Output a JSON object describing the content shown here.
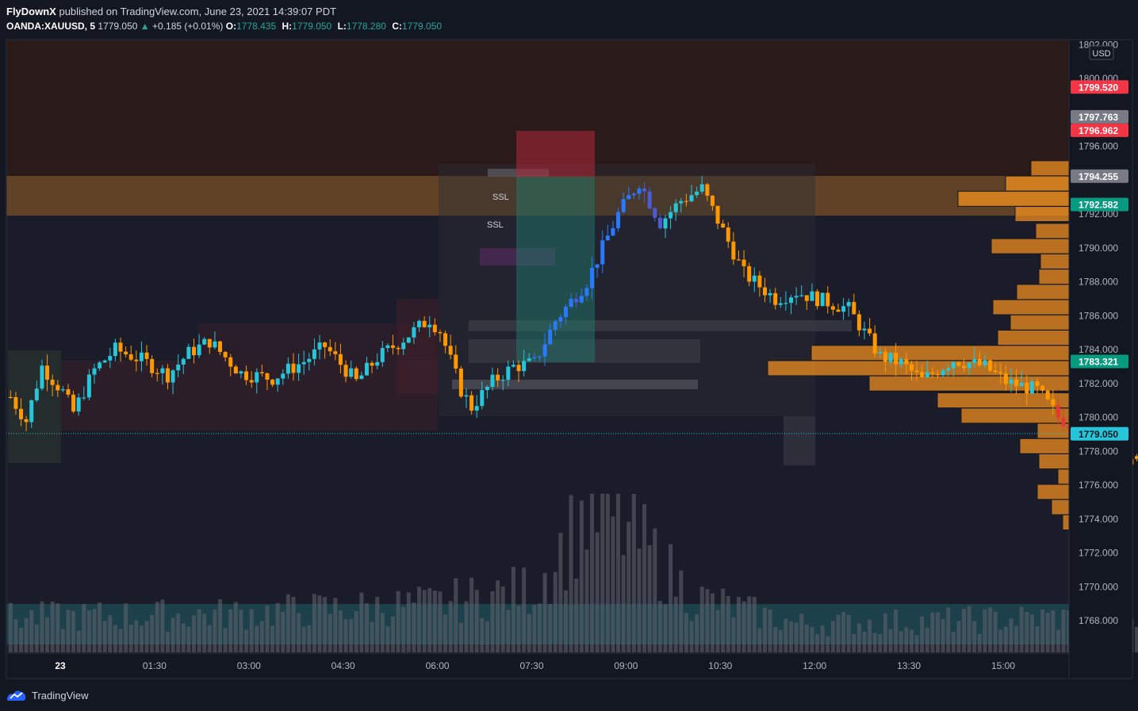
{
  "header": {
    "author": "FlyDownX",
    "published": "published on TradingView.com, June 23, 2021 14:39:07 PDT",
    "symbol": "OANDA:XAUUSD, 5",
    "last": "1779.050",
    "change": "+0.185 (+0.01%)",
    "o_label": "O:",
    "o_value": "1778.435",
    "h_label": "H:",
    "h_value": "1779.050",
    "l_label": "L:",
    "l_value": "1778.280",
    "c_label": "C:",
    "c_value": "1779.050"
  },
  "footer": {
    "brand": "TradingView"
  },
  "colors": {
    "bg": "#131722",
    "up": "#26c6da",
    "down": "#ef6c00",
    "accent": "#f7931e",
    "sell": "#f23645",
    "buy": "#089981"
  },
  "chart_data": {
    "type": "candlestick",
    "title": "",
    "currency": "USD",
    "timeframe": "5",
    "x_tick_labels": [
      "23",
      "01:30",
      "03:00",
      "04:30",
      "06:00",
      "07:30",
      "09:00",
      "10:30",
      "12:00",
      "13:30",
      "15:00"
    ],
    "y_tick_labels": [
      "1802.000",
      "1800.000",
      "1796.000",
      "1792.000",
      "1790.000",
      "1788.000",
      "1786.000",
      "1784.000",
      "1782.000",
      "1780.000",
      "1778.000",
      "1776.000",
      "1774.000",
      "1772.000",
      "1770.000",
      "1768.000"
    ],
    "ylim": [
      1766.5,
      1802.5
    ],
    "price_labels": [
      {
        "value": "1799.520",
        "kind": "sell"
      },
      {
        "value": "1797.763",
        "kind": "neutral"
      },
      {
        "value": "1796.962",
        "kind": "sell"
      },
      {
        "value": "1794.255",
        "kind": "neutral"
      },
      {
        "value": "1792.582",
        "kind": "buy"
      },
      {
        "value": "1783.321",
        "kind": "buy"
      },
      {
        "value": "1779.050",
        "kind": "last"
      }
    ],
    "annotations": [
      "SSL",
      "SSL"
    ],
    "zones": [
      {
        "label": "resistance",
        "from": 1791.9,
        "to": 1794.2
      },
      {
        "label": "premium",
        "from": 1794.2,
        "to": 1802.5
      },
      {
        "label": "volume-area",
        "from": 1766.6,
        "to": 1769.0
      }
    ],
    "volume_profile": [
      {
        "price": 1794.7,
        "volume": 48
      },
      {
        "price": 1793.8,
        "volume": 80
      },
      {
        "price": 1792.9,
        "volume": 140
      },
      {
        "price": 1792.0,
        "volume": 68
      },
      {
        "price": 1791.0,
        "volume": 42
      },
      {
        "price": 1790.1,
        "volume": 98
      },
      {
        "price": 1789.2,
        "volume": 36
      },
      {
        "price": 1788.3,
        "volume": 38
      },
      {
        "price": 1787.4,
        "volume": 66
      },
      {
        "price": 1786.5,
        "volume": 96
      },
      {
        "price": 1785.6,
        "volume": 74
      },
      {
        "price": 1784.7,
        "volume": 90
      },
      {
        "price": 1783.8,
        "volume": 325
      },
      {
        "price": 1782.9,
        "volume": 380
      },
      {
        "price": 1782.0,
        "volume": 252
      },
      {
        "price": 1781.0,
        "volume": 166
      },
      {
        "price": 1780.1,
        "volume": 136
      },
      {
        "price": 1779.2,
        "volume": 40
      },
      {
        "price": 1778.3,
        "volume": 62
      },
      {
        "price": 1777.4,
        "volume": 38
      },
      {
        "price": 1776.5,
        "volume": 14
      },
      {
        "price": 1775.6,
        "volume": 40
      },
      {
        "price": 1774.7,
        "volume": 22
      },
      {
        "price": 1773.8,
        "volume": 8
      }
    ],
    "path": [
      [
        0,
        1781.2
      ],
      [
        3,
        1779.8
      ],
      [
        6,
        1783.0
      ],
      [
        10,
        1781.5
      ],
      [
        12,
        1780.3
      ],
      [
        16,
        1782.8
      ],
      [
        20,
        1784.0
      ],
      [
        25,
        1783.4
      ],
      [
        30,
        1782.5
      ],
      [
        34,
        1783.8
      ],
      [
        38,
        1784.5
      ],
      [
        44,
        1782.6
      ],
      [
        50,
        1782.3
      ],
      [
        56,
        1783.3
      ],
      [
        60,
        1784.2
      ],
      [
        66,
        1782.1
      ],
      [
        70,
        1783.5
      ],
      [
        74,
        1784.4
      ],
      [
        80,
        1785.8
      ],
      [
        82,
        1785.1
      ],
      [
        86,
        1781.6
      ],
      [
        88,
        1780.6
      ],
      [
        92,
        1782.1
      ],
      [
        96,
        1783.0
      ],
      [
        100,
        1783.2
      ],
      [
        104,
        1785.7
      ],
      [
        110,
        1788.0
      ],
      [
        116,
        1792.0
      ],
      [
        120,
        1793.9
      ],
      [
        124,
        1791.5
      ],
      [
        128,
        1792.8
      ],
      [
        132,
        1793.5
      ],
      [
        136,
        1791.0
      ],
      [
        140,
        1788.5
      ],
      [
        146,
        1787.0
      ],
      [
        150,
        1787.4
      ],
      [
        154,
        1787.0
      ],
      [
        160,
        1786.4
      ],
      [
        166,
        1783.6
      ],
      [
        170,
        1783.2
      ],
      [
        174,
        1782.2
      ],
      [
        180,
        1783.4
      ],
      [
        186,
        1783.0
      ],
      [
        190,
        1782.1
      ],
      [
        196,
        1781.6
      ],
      [
        200,
        1780.0
      ],
      [
        206,
        1779.0
      ],
      [
        210,
        1778.0
      ],
      [
        216,
        1777.2
      ],
      [
        220,
        1775.2
      ],
      [
        224,
        1775.0
      ],
      [
        232,
        1776.6
      ],
      [
        238,
        1777.9
      ],
      [
        242,
        1778.6
      ],
      [
        246,
        1779.05
      ]
    ],
    "volume": [
      {
        "x": 0,
        "v": 22
      },
      {
        "x": 40,
        "v": 24
      },
      {
        "x": 80,
        "v": 30
      },
      {
        "x": 100,
        "v": 40
      },
      {
        "x": 110,
        "v": 88
      },
      {
        "x": 116,
        "v": 82
      },
      {
        "x": 120,
        "v": 70
      },
      {
        "x": 130,
        "v": 35
      },
      {
        "x": 150,
        "v": 18
      },
      {
        "x": 180,
        "v": 20
      },
      {
        "x": 200,
        "v": 22
      },
      {
        "x": 210,
        "v": 18
      },
      {
        "x": 220,
        "v": 14
      },
      {
        "x": 246,
        "v": 8
      }
    ]
  }
}
